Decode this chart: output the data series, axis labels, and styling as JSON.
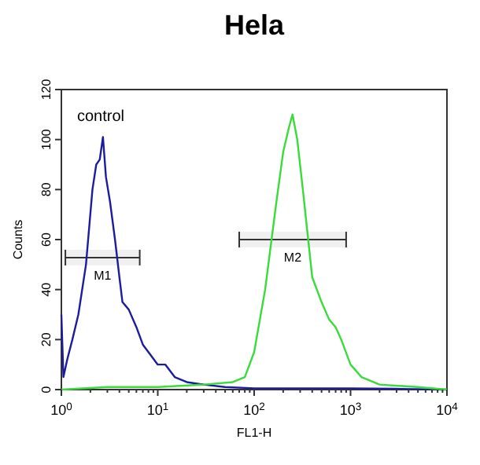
{
  "chart_data": {
    "type": "line",
    "title": "Hela",
    "xlabel": "FL1-H",
    "ylabel": "Counts",
    "log": "x",
    "xlim": [
      1,
      10000
    ],
    "ylim": [
      0,
      120
    ],
    "xticks": [
      {
        "value": 1,
        "label": "10$^{0}$"
      },
      {
        "value": 2,
        "label": null
      },
      {
        "value": 3,
        "label": null
      },
      {
        "value": 4,
        "label": null
      },
      {
        "value": 5,
        "label": null
      },
      {
        "value": 6,
        "label": null
      },
      {
        "value": 7,
        "label": null
      },
      {
        "value": 8,
        "label": null
      },
      {
        "value": 9,
        "label": null
      },
      {
        "value": 10,
        "label": "10$^{1}$"
      },
      {
        "value": 20,
        "label": null
      },
      {
        "value": 30,
        "label": null
      },
      {
        "value": 40,
        "label": null
      },
      {
        "value": 50,
        "label": null
      },
      {
        "value": 60,
        "label": null
      },
      {
        "value": 70,
        "label": null
      },
      {
        "value": 80,
        "label": null
      },
      {
        "value": 90,
        "label": null
      },
      {
        "value": 100,
        "label": "10$^{2}$"
      },
      {
        "value": 200,
        "label": null
      },
      {
        "value": 300,
        "label": null
      },
      {
        "value": 400,
        "label": null
      },
      {
        "value": 500,
        "label": null
      },
      {
        "value": 600,
        "label": null
      },
      {
        "value": 700,
        "label": null
      },
      {
        "value": 800,
        "label": null
      },
      {
        "value": 900,
        "label": null
      },
      {
        "value": 1000,
        "label": "10$^{3}$"
      },
      {
        "value": 2000,
        "label": null
      },
      {
        "value": 3000,
        "label": null
      },
      {
        "value": 4000,
        "label": null
      },
      {
        "value": 5000,
        "label": null
      },
      {
        "value": 6000,
        "label": null
      },
      {
        "value": 7000,
        "label": null
      },
      {
        "value": 8000,
        "label": null
      },
      {
        "value": 9000,
        "label": null
      },
      {
        "value": 10000,
        "label": "10$^{4}$"
      }
    ],
    "yticks": [
      0,
      20,
      40,
      60,
      80,
      100,
      120
    ],
    "series": [
      {
        "color": "#1c1ca0",
        "x": [
          1,
          1.05,
          1.15,
          1.3,
          1.5,
          1.8,
          2.1,
          2.3,
          2.5,
          2.7,
          2.9,
          3.2,
          3.6,
          4,
          4.3,
          5,
          6,
          7,
          8,
          10,
          12,
          15,
          20,
          30,
          50,
          100,
          300,
          1000,
          3000,
          10000
        ],
        "values": [
          30,
          5,
          12,
          20,
          30,
          50,
          80,
          90,
          92,
          101,
          85,
          75,
          60,
          45,
          35,
          32,
          25,
          18,
          15,
          10,
          10,
          5,
          3,
          2,
          1,
          0.5,
          0.5,
          0.5,
          0.3,
          0
        ]
      },
      {
        "color": "#3adc3a",
        "x": [
          1,
          3,
          10,
          30,
          60,
          80,
          100,
          130,
          170,
          200,
          230,
          250,
          280,
          320,
          400,
          500,
          600,
          700,
          800,
          1000,
          1300,
          2000,
          5000,
          10000
        ],
        "values": [
          0,
          1,
          1,
          2,
          3,
          5,
          15,
          40,
          75,
          95,
          105,
          110,
          100,
          80,
          45,
          35,
          28,
          25,
          20,
          10,
          5,
          2,
          1,
          0
        ]
      }
    ],
    "bands": [
      {
        "axis": "x",
        "from": 1.1,
        "to": 6.5,
        "label": "M1"
      },
      {
        "axis": "x",
        "from": 70,
        "to": 900,
        "label": "M2"
      }
    ],
    "annotations": [
      "control"
    ]
  }
}
